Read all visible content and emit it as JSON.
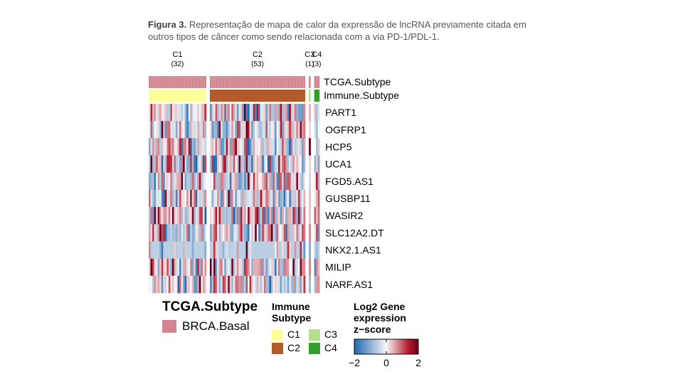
{
  "caption": {
    "label": "Figura 3.",
    "text": "Representação de mapa de calor da expressão de lncRNA previamente citada em outros tipos de câncer como sendo relacionada com a via PD-1/PDL-1."
  },
  "chart_data": {
    "type": "heatmap",
    "clusters": [
      {
        "label": "C1",
        "count_label": "(32)",
        "n": 32
      },
      {
        "label": "C2",
        "count_label": "(53)",
        "n": 53
      },
      {
        "label": "C3",
        "count_label": "(1)",
        "n": 1
      },
      {
        "label": "C4",
        "count_label": "(3)",
        "n": 3
      }
    ],
    "annotation_rows": [
      "TCGA.Subtype",
      "Immune.Subtype"
    ],
    "genes": [
      "PART1",
      "OGFRP1",
      "HCP5",
      "UCA1",
      "FGD5.AS1",
      "GUSBP11",
      "WASIR2",
      "SLC12A2.DT",
      "NKX2.1.AS1",
      "MILIP",
      "NARF.AS1"
    ],
    "zlim": [
      -2,
      2
    ],
    "colors": {
      "tcga_brca_basal": "#d4848f",
      "immune_c1": "#ffff99",
      "immune_c2": "#b35a2a",
      "immune_c3": "#b2df8a",
      "immune_c4": "#33a02c",
      "scale_low": "#2166ac",
      "scale_mid": "#f7f7f7",
      "scale_high": "#b2182b",
      "scale_max": "#67001f"
    },
    "legends": {
      "tcga": {
        "title": "TCGA.Subtype",
        "items": [
          "BRCA.Basal"
        ]
      },
      "immune": {
        "title_line1": "Immune",
        "title_line2": "Subtype",
        "items": [
          "C1",
          "C3",
          "C2",
          "C4"
        ]
      },
      "zscore": {
        "title_line1": "Log2 Gene",
        "title_line2": "expression",
        "title_line3": "z−score",
        "ticks": [
          "−2",
          "0",
          "2"
        ]
      }
    }
  }
}
